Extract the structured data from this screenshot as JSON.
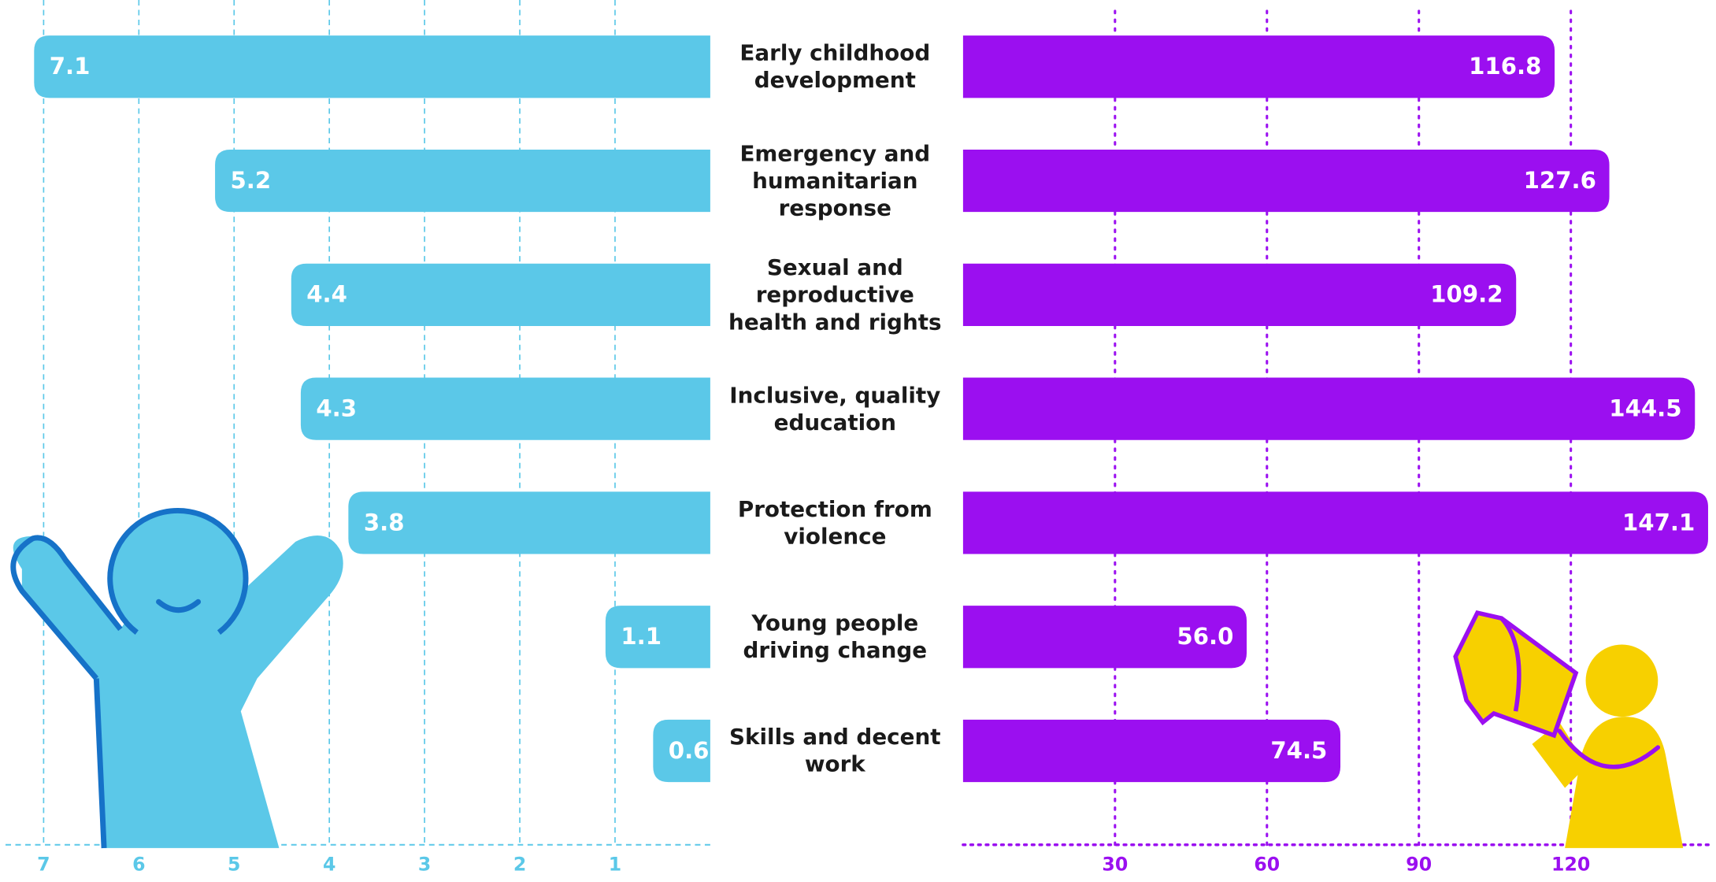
{
  "chart_data": {
    "type": "bar",
    "orientation": "horizontal",
    "categories": [
      "Early childhood development",
      "Emergency and humanitarian response",
      "Sexual and reproductive health and rights",
      "Inclusive, quality education",
      "Protection from violence",
      "Young people driving change",
      "Skills and decent work"
    ],
    "series": [
      {
        "color": "#5bc8e8",
        "values": [
          7.1,
          5.2,
          4.4,
          4.3,
          3.8,
          1.1,
          0.6
        ],
        "axis": "x"
      },
      {
        "color": "#9b0ff0",
        "values": [
          116.8,
          127.6,
          109.2,
          144.5,
          147.1,
          56.0,
          74.5
        ],
        "value_labels": [
          "116.8",
          "127.6",
          "109.2",
          "144.5",
          "147.1",
          "56.0",
          "74.5"
        ],
        "axis": "x2"
      }
    ],
    "xlim": [
      7.4,
      0
    ],
    "xticks": [
      7,
      6,
      5,
      4,
      3,
      2,
      1
    ],
    "x2lim": [
      0,
      148
    ],
    "x2ticks": [
      30,
      60,
      90,
      120
    ],
    "grid": true
  }
}
